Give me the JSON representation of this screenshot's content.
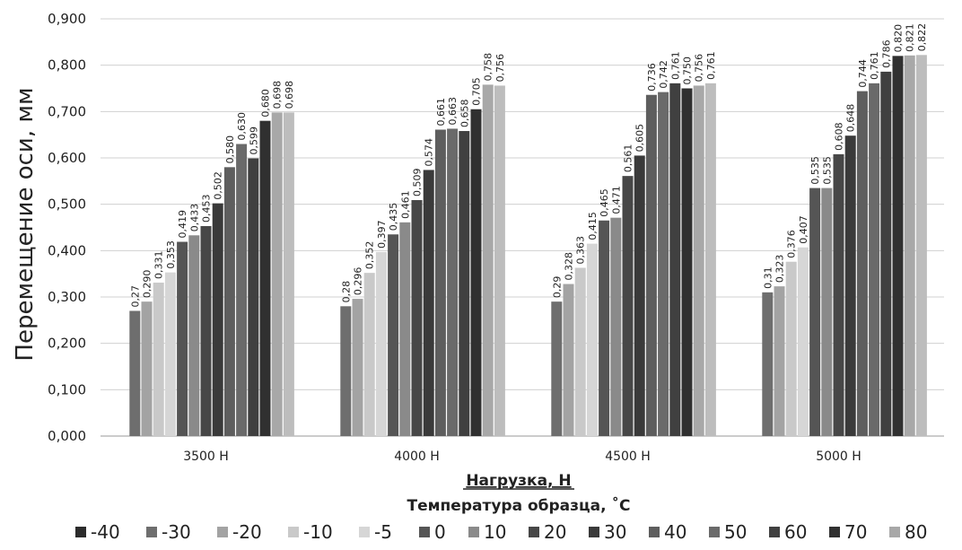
{
  "chart_data": {
    "type": "bar",
    "ylabel": "Перемещение оси, мм",
    "xlabel": "Нагрузка, Н",
    "legend_title": "Температура образца, ˚С",
    "legend_position": "bottom",
    "grid": true,
    "ylim": [
      0,
      0.9
    ],
    "yticks": [
      "0,000",
      "0,100",
      "0,200",
      "0,300",
      "0,400",
      "0,500",
      "0,600",
      "0,700",
      "0,800",
      "0,900"
    ],
    "categories": [
      "3500 Н",
      "4000 Н",
      "4500 Н",
      "5000 Н"
    ],
    "series": [
      {
        "name": "-40",
        "color": "#2b2b2b",
        "values": [
          null,
          null,
          null,
          null
        ],
        "labels": [
          "",
          "",
          "",
          ""
        ]
      },
      {
        "name": "-30",
        "color": "#6e6e6e",
        "values": [
          0.27,
          0.28,
          0.29,
          0.31
        ],
        "labels": [
          "0,27",
          "0,28",
          "0,29",
          "0,31"
        ]
      },
      {
        "name": "-20",
        "color": "#a3a3a3",
        "values": [
          0.29,
          0.296,
          0.328,
          0.323
        ],
        "labels": [
          "0,290",
          "0,296",
          "0,328",
          "0,323"
        ]
      },
      {
        "name": "-10",
        "color": "#c9c9c9",
        "values": [
          0.331,
          0.352,
          0.363,
          0.376
        ],
        "labels": [
          "0,331",
          "0,352",
          "0,363",
          "0,376"
        ]
      },
      {
        "name": "-5",
        "color": "#d6d6d6",
        "values": [
          0.353,
          0.397,
          0.415,
          0.407
        ],
        "labels": [
          "0,353",
          "0,397",
          "0,415",
          "0,407"
        ]
      },
      {
        "name": "0",
        "color": "#555555",
        "values": [
          0.419,
          0.435,
          0.465,
          0.535
        ],
        "labels": [
          "0,419",
          "0,435",
          "0,465",
          "0,535"
        ]
      },
      {
        "name": "10",
        "color": "#8a8a8a",
        "values": [
          0.433,
          0.461,
          0.471,
          0.535
        ],
        "labels": [
          "0,433",
          "0,461",
          "0,471",
          "0,535"
        ]
      },
      {
        "name": "20",
        "color": "#474747",
        "values": [
          0.453,
          0.509,
          0.561,
          0.608
        ],
        "labels": [
          "0,453",
          "0,509",
          "0,561",
          "0,608"
        ]
      },
      {
        "name": "30",
        "color": "#3a3a3a",
        "values": [
          0.502,
          0.574,
          0.605,
          0.648
        ],
        "labels": [
          "0,502",
          "0,574",
          "0,605",
          "0,648"
        ]
      },
      {
        "name": "40",
        "color": "#5e5e5e",
        "values": [
          0.58,
          0.661,
          0.736,
          0.744
        ],
        "labels": [
          "0,580",
          "0,661",
          "0,736",
          "0,744"
        ]
      },
      {
        "name": "50",
        "color": "#6a6a6a",
        "values": [
          0.63,
          0.663,
          0.742,
          0.761
        ],
        "labels": [
          "0,630",
          "0,663",
          "0,742",
          "0,761"
        ]
      },
      {
        "name": "60",
        "color": "#404040",
        "values": [
          0.599,
          0.658,
          0.761,
          0.786
        ],
        "labels": [
          "0,599",
          "0,658",
          "0,761",
          "0,786"
        ]
      },
      {
        "name": "70",
        "color": "#303030",
        "values": [
          0.68,
          0.705,
          0.75,
          0.82
        ],
        "labels": [
          "0,680",
          "0,705",
          "0,750",
          "0,820"
        ]
      },
      {
        "name": "80",
        "color": "#a8a8a8",
        "values": [
          0.698,
          0.758,
          0.756,
          0.821
        ],
        "labels": [
          "0,698",
          "0,758",
          "0,756",
          "0,821"
        ]
      },
      {
        "name": "",
        "color": "#bdbdbd",
        "values": [
          0.698,
          0.756,
          0.761,
          0.822
        ],
        "labels": [
          "0,698",
          "0,756",
          "0,761",
          "0,822"
        ]
      }
    ]
  }
}
